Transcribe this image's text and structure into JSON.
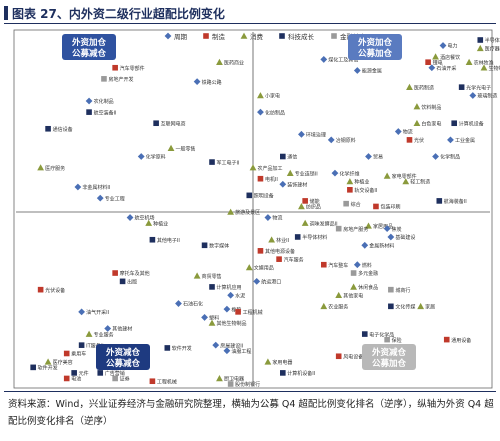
{
  "header": {
    "title": "图表 27、内外资二级行业超配比例变化"
  },
  "colors": {
    "navy": "#1e2f5e",
    "periodic": "#4a6fb5",
    "manufacturing": "#c0392b",
    "consumer": "#8a9a3c",
    "tech": "#1e2f5e",
    "finance": "#9a9a9a",
    "quad_tl": "#2f52a0",
    "quad_tr": "#5a7bc0",
    "quad_bl": "#1e3a80",
    "quad_br": "#b8b8b8"
  },
  "legend": [
    {
      "key": "periodic",
      "label": "周期",
      "shape": "diamond"
    },
    {
      "key": "manufacturing",
      "label": "制造",
      "shape": "square"
    },
    {
      "key": "consumer",
      "label": "消费",
      "shape": "triangle"
    },
    {
      "key": "tech",
      "label": "科技成长",
      "shape": "square"
    },
    {
      "key": "finance",
      "label": "金融地产",
      "shape": "square"
    }
  ],
  "quadrants": [
    {
      "key": "tl",
      "label1": "外资加仓",
      "label2": "公募减仓"
    },
    {
      "key": "tr",
      "label1": "外资加仓",
      "label2": "公募加仓"
    },
    {
      "key": "bl",
      "label1": "外资减仓",
      "label2": "公募减仓"
    },
    {
      "key": "br",
      "label1": "外资减仓",
      "label2": "公募加仓"
    }
  ],
  "chart_data": {
    "type": "scatter",
    "xlabel": "",
    "ylabel": "",
    "xlim": [
      0,
      124
    ],
    "ylim": [
      0,
      124
    ],
    "grid": false,
    "legend_position": "top",
    "points": [
      {
        "label": "半导体",
        "x": 123,
        "y": 124,
        "cat": "tech"
      },
      {
        "label": "电力",
        "x": 113,
        "y": 122,
        "cat": "periodic"
      },
      {
        "label": "医疗器械",
        "x": 123,
        "y": 121,
        "cat": "consumer"
      },
      {
        "label": "白酒",
        "x": 12,
        "y": 118,
        "cat": "consumer"
      },
      {
        "label": "酒店餐饮",
        "x": 111,
        "y": 118,
        "cat": "consumer"
      },
      {
        "label": "锂电",
        "x": 109,
        "y": 116,
        "cat": "manufacturing"
      },
      {
        "label": "农林牧渔",
        "x": 120,
        "y": 116,
        "cat": "consumer"
      },
      {
        "label": "石油开采",
        "x": 110,
        "y": 114,
        "cat": "periodic"
      },
      {
        "label": "生物制品",
        "x": 124,
        "y": 114,
        "cat": "consumer"
      },
      {
        "label": "汽车零部件",
        "x": 25,
        "y": 114,
        "cat": "manufacturing"
      },
      {
        "label": "医药商业",
        "x": 53,
        "y": 116,
        "cat": "consumer"
      },
      {
        "label": "煤化工及其他",
        "x": 81,
        "y": 117,
        "cat": "periodic"
      },
      {
        "label": "能源金属",
        "x": 90,
        "y": 113,
        "cat": "periodic"
      },
      {
        "label": "房地产开发",
        "x": 22,
        "y": 110,
        "cat": "finance"
      },
      {
        "label": "铁路公路",
        "x": 47,
        "y": 109,
        "cat": "periodic"
      },
      {
        "label": "医药制造",
        "x": 104,
        "y": 107,
        "cat": "consumer"
      },
      {
        "label": "光学光电子",
        "x": 118,
        "y": 107,
        "cat": "tech"
      },
      {
        "label": "玻璃制造",
        "x": 121,
        "y": 104,
        "cat": "periodic"
      },
      {
        "label": "小家电",
        "x": 64,
        "y": 104,
        "cat": "consumer"
      },
      {
        "label": "农化制品",
        "x": 18,
        "y": 102,
        "cat": "periodic"
      },
      {
        "label": "航空装备II",
        "x": 18,
        "y": 98,
        "cat": "tech"
      },
      {
        "label": "化纺制品",
        "x": 64,
        "y": 98,
        "cat": "periodic"
      },
      {
        "label": "饮料制品",
        "x": 106,
        "y": 100,
        "cat": "consumer"
      },
      {
        "label": "通信设备",
        "x": 7,
        "y": 92,
        "cat": "tech"
      },
      {
        "label": "互联网电商",
        "x": 36,
        "y": 94,
        "cat": "tech"
      },
      {
        "label": "白色家电",
        "x": 106,
        "y": 94,
        "cat": "consumer"
      },
      {
        "label": "计算机设备",
        "x": 116,
        "y": 94,
        "cat": "tech"
      },
      {
        "label": "物流",
        "x": 101,
        "y": 91,
        "cat": "periodic"
      },
      {
        "label": "环境治理",
        "x": 75,
        "y": 90,
        "cat": "periodic"
      },
      {
        "label": "冶钢原料",
        "x": 83,
        "y": 88,
        "cat": "periodic"
      },
      {
        "label": "光伏",
        "x": 104,
        "y": 88,
        "cat": "manufacturing"
      },
      {
        "label": "工业金属",
        "x": 115,
        "y": 88,
        "cat": "periodic"
      },
      {
        "label": "一般零售",
        "x": 40,
        "y": 85,
        "cat": "consumer"
      },
      {
        "label": "化学原料",
        "x": 32,
        "y": 82,
        "cat": "periodic"
      },
      {
        "label": "军工电子II",
        "x": 51,
        "y": 80,
        "cat": "tech"
      },
      {
        "label": "通信",
        "x": 70,
        "y": 82,
        "cat": "tech"
      },
      {
        "label": "贸易",
        "x": 93,
        "y": 82,
        "cat": "periodic"
      },
      {
        "label": "化学制品",
        "x": 111,
        "y": 82,
        "cat": "periodic"
      },
      {
        "label": "医疗服务",
        "x": 5,
        "y": 78,
        "cat": "consumer"
      },
      {
        "label": "农产品加工",
        "x": 62,
        "y": 78,
        "cat": "consumer"
      },
      {
        "label": "专业连锁II",
        "x": 72,
        "y": 76,
        "cat": "consumer"
      },
      {
        "label": "化学纤维",
        "x": 84,
        "y": 76,
        "cat": "periodic"
      },
      {
        "label": "电机II",
        "x": 64,
        "y": 74,
        "cat": "manufacturing"
      },
      {
        "label": "照明设备",
        "x": 61,
        "y": 68,
        "cat": "tech"
      },
      {
        "label": "装饰建材",
        "x": 70,
        "y": 72,
        "cat": "periodic"
      },
      {
        "label": "种植业",
        "x": 88,
        "y": 73,
        "cat": "consumer"
      },
      {
        "label": "轨交设备II",
        "x": 88,
        "y": 70,
        "cat": "manufacturing"
      },
      {
        "label": "家电零部件",
        "x": 98,
        "y": 75,
        "cat": "consumer"
      },
      {
        "label": "轻工制造",
        "x": 103,
        "y": 73,
        "cat": "consumer"
      },
      {
        "label": "非金属材料II",
        "x": 15,
        "y": 71,
        "cat": "periodic"
      },
      {
        "label": "专业工程",
        "x": 21,
        "y": 67,
        "cat": "periodic"
      },
      {
        "label": "储能",
        "x": 76,
        "y": 66,
        "cat": "manufacturing"
      },
      {
        "label": "纺织品",
        "x": 75,
        "y": 64,
        "cat": "consumer"
      },
      {
        "label": "综合",
        "x": 87,
        "y": 65,
        "cat": "finance"
      },
      {
        "label": "包装印刷",
        "x": 95,
        "y": 64,
        "cat": "manufacturing"
      },
      {
        "label": "航海装备II",
        "x": 112,
        "y": 66,
        "cat": "tech"
      },
      {
        "label": "旅游及景区",
        "x": 56,
        "y": 62,
        "cat": "consumer"
      },
      {
        "label": "种植业",
        "x": 34,
        "y": 58,
        "cat": "consumer"
      },
      {
        "label": "航空机场",
        "x": 29,
        "y": 60,
        "cat": "periodic"
      },
      {
        "label": "物流",
        "x": 66,
        "y": 60,
        "cat": "periodic"
      },
      {
        "label": "调味发酵品II",
        "x": 76,
        "y": 58,
        "cat": "consumer"
      },
      {
        "label": "家居用品",
        "x": 93,
        "y": 57,
        "cat": "consumer"
      },
      {
        "label": "焦炭",
        "x": 98,
        "y": 56,
        "cat": "periodic"
      },
      {
        "label": "房地产服务",
        "x": 85,
        "y": 56,
        "cat": "finance"
      },
      {
        "label": "其他电子II",
        "x": 35,
        "y": 52,
        "cat": "tech"
      },
      {
        "label": "数字媒体",
        "x": 49,
        "y": 50,
        "cat": "tech"
      },
      {
        "label": "林业II",
        "x": 67,
        "y": 52,
        "cat": "consumer"
      },
      {
        "label": "基础建设",
        "x": 99,
        "y": 53,
        "cat": "periodic"
      },
      {
        "label": "半导体材料",
        "x": 74,
        "y": 53,
        "cat": "tech"
      },
      {
        "label": "金属新材料",
        "x": 92,
        "y": 50,
        "cat": "periodic"
      },
      {
        "label": "其他电源设备",
        "x": 64,
        "y": 48,
        "cat": "manufacturing"
      },
      {
        "label": "汽车服务",
        "x": 69,
        "y": 45,
        "cat": "manufacturing"
      },
      {
        "label": "汽车整车",
        "x": 81,
        "y": 43,
        "cat": "manufacturing"
      },
      {
        "label": "燃料",
        "x": 90,
        "y": 43,
        "cat": "periodic"
      },
      {
        "label": "多元金融",
        "x": 89,
        "y": 40,
        "cat": "finance"
      },
      {
        "label": "文娱用品",
        "x": 61,
        "y": 42,
        "cat": "consumer"
      },
      {
        "label": "摩托车及其他",
        "x": 25,
        "y": 40,
        "cat": "manufacturing"
      },
      {
        "label": "商贸零售",
        "x": 47,
        "y": 39,
        "cat": "consumer"
      },
      {
        "label": "出版",
        "x": 27,
        "y": 37,
        "cat": "tech"
      },
      {
        "label": "航运港口",
        "x": 63,
        "y": 37,
        "cat": "periodic"
      },
      {
        "label": "休闲食品",
        "x": 89,
        "y": 35,
        "cat": "consumer"
      },
      {
        "label": "其他家电",
        "x": 85,
        "y": 32,
        "cat": "consumer"
      },
      {
        "label": "城商行",
        "x": 99,
        "y": 34,
        "cat": "finance"
      },
      {
        "label": "计算机应用",
        "x": 51,
        "y": 35,
        "cat": "tech"
      },
      {
        "label": "光伏设备",
        "x": 5,
        "y": 34,
        "cat": "manufacturing"
      },
      {
        "label": "水泥",
        "x": 56,
        "y": 32,
        "cat": "periodic"
      },
      {
        "label": "石油石化",
        "x": 42,
        "y": 29,
        "cat": "periodic"
      },
      {
        "label": "橡胶",
        "x": 55,
        "y": 27,
        "cat": "periodic"
      },
      {
        "label": "文化传媒",
        "x": 99,
        "y": 28,
        "cat": "tech"
      },
      {
        "label": "农业服务",
        "x": 81,
        "y": 28,
        "cat": "consumer"
      },
      {
        "label": "家居",
        "x": 107,
        "y": 28,
        "cat": "consumer"
      },
      {
        "label": "油气开采II",
        "x": 16,
        "y": 26,
        "cat": "periodic"
      },
      {
        "label": "工程机械",
        "x": 58,
        "y": 26,
        "cat": "manufacturing"
      },
      {
        "label": "塑料",
        "x": 49,
        "y": 24,
        "cat": "periodic"
      },
      {
        "label": "其他生物制品",
        "x": 51,
        "y": 22,
        "cat": "consumer"
      },
      {
        "label": "其他建材",
        "x": 23,
        "y": 20,
        "cat": "periodic"
      },
      {
        "label": "专业服务",
        "x": 18,
        "y": 18,
        "cat": "consumer"
      },
      {
        "label": "电子化学品",
        "x": 92,
        "y": 18,
        "cat": "tech"
      },
      {
        "label": "保险",
        "x": 98,
        "y": 16,
        "cat": "finance"
      },
      {
        "label": "通用设备",
        "x": 114,
        "y": 16,
        "cat": "manufacturing"
      },
      {
        "label": "IT服务II",
        "x": 16,
        "y": 14,
        "cat": "tech"
      },
      {
        "label": "黄金",
        "x": 30,
        "y": 13,
        "cat": "periodic"
      },
      {
        "label": "软件开发",
        "x": 39,
        "y": 13,
        "cat": "tech"
      },
      {
        "label": "房屋建设II",
        "x": 52,
        "y": 14,
        "cat": "periodic"
      },
      {
        "label": "油服工程",
        "x": 55,
        "y": 12,
        "cat": "periodic"
      },
      {
        "label": "乘用车",
        "x": 12,
        "y": 11,
        "cat": "manufacturing"
      },
      {
        "label": "风电设备",
        "x": 85,
        "y": 10,
        "cat": "manufacturing"
      },
      {
        "label": "医疗美容",
        "x": 7,
        "y": 8,
        "cat": "consumer"
      },
      {
        "label": "视频游戏",
        "x": 25,
        "y": 6,
        "cat": "tech"
      },
      {
        "label": "元件",
        "x": 14,
        "y": 4,
        "cat": "tech"
      },
      {
        "label": "广告营销",
        "x": 21,
        "y": 4,
        "cat": "tech"
      },
      {
        "label": "家用电器",
        "x": 66,
        "y": 8,
        "cat": "consumer"
      },
      {
        "label": "专用设备",
        "x": 99,
        "y": 8,
        "cat": "manufacturing"
      },
      {
        "label": "电池",
        "x": 12,
        "y": 2,
        "cat": "manufacturing"
      },
      {
        "label": "证券",
        "x": 25,
        "y": 2,
        "cat": "finance"
      },
      {
        "label": "工程机械",
        "x": 35,
        "y": 1,
        "cat": "manufacturing"
      },
      {
        "label": "厨卫电器",
        "x": 53,
        "y": 2,
        "cat": "consumer"
      },
      {
        "label": "股份制银行",
        "x": 56,
        "y": 0,
        "cat": "finance"
      },
      {
        "label": "计算机设备II",
        "x": 70,
        "y": 4,
        "cat": "tech"
      },
      {
        "label": "软件开发",
        "x": 3,
        "y": 6,
        "cat": "tech"
      }
    ]
  },
  "source": {
    "text": "资料来源：Wind，兴业证券经济与金融研究院整理，横轴为公募 Q4 超配比例变化排名（逆序），纵轴为外资 Q4 超配比例变化排名（逆序）"
  }
}
